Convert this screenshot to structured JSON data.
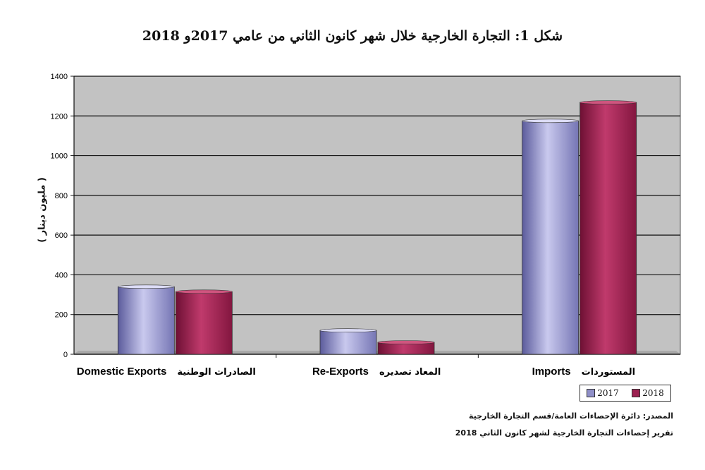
{
  "chart_data": {
    "type": "bar",
    "title": "شكل 1: التجارة الخارجية خلال شهر كانون الثاني من عامي  2017و 2018",
    "ylabel": "( مليون دينار )",
    "xlabel": "",
    "ylim": [
      0,
      1400
    ],
    "yticks": [
      0,
      200,
      400,
      600,
      800,
      1000,
      1200,
      1400
    ],
    "grid": true,
    "legend_position": "bottom-right",
    "categories": [
      {
        "en": "Domestic Exports",
        "ar": "الصادرات الوطنية"
      },
      {
        "en": "Re-Exports",
        "ar": "المعاد تصديره"
      },
      {
        "en": "Imports",
        "ar": "المستوردات"
      }
    ],
    "series": [
      {
        "name": "2017",
        "color": "#8f8fc8",
        "values": [
          340,
          120,
          1175
        ]
      },
      {
        "name": "2018",
        "color": "#9c2050",
        "values": [
          315,
          60,
          1268
        ]
      }
    ]
  },
  "source_line1": "المصدر: دائرة الإحصاءات العامة/قسم التجارة الخارجية",
  "source_line2": "تقرير إحصاءات التجارة الخارجية لشهر كانون الثاني 2018"
}
